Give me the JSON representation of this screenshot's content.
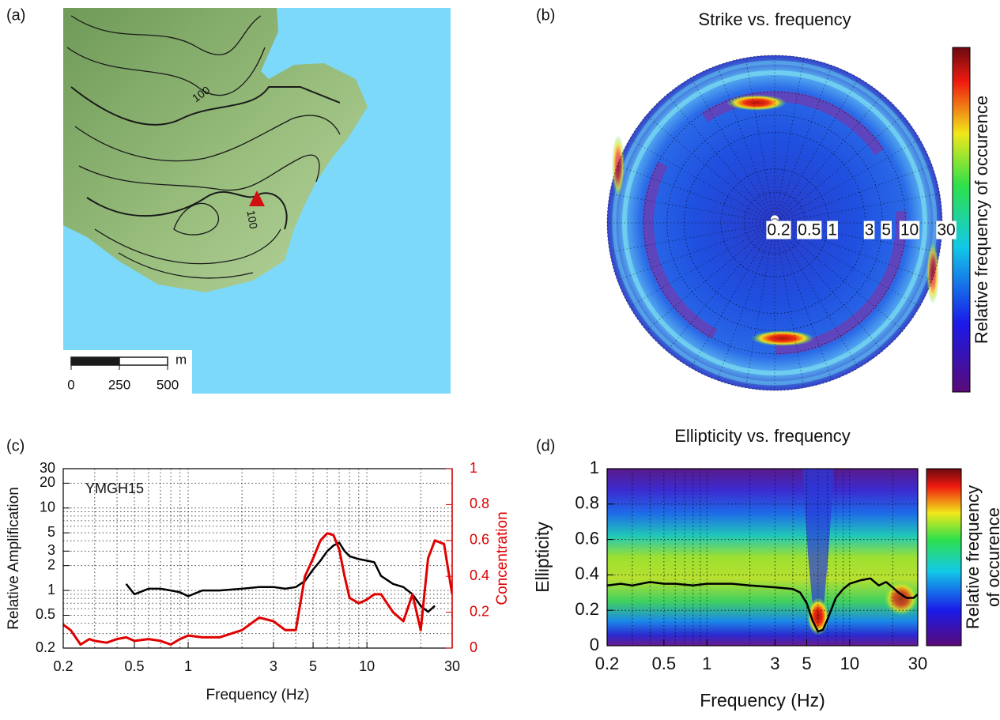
{
  "chart_data": [
    {
      "type": "map",
      "label": "(a)",
      "contour_labels": [
        "100",
        "100"
      ],
      "scale_ticks": [
        0,
        250,
        500
      ],
      "scale_unit": "m"
    },
    {
      "type": "polar_heatmap",
      "label": "(b)",
      "title": "Strike vs. frequency",
      "rlog": true,
      "rlim": [
        0.2,
        30
      ],
      "rticks": [
        0.2,
        0.5,
        1,
        3,
        5,
        10,
        30
      ],
      "colorbar_label": "Relative frequency of occurence"
    },
    {
      "type": "line",
      "label": "(c)",
      "annotation": "YMGH15",
      "x_label": "Frequency (Hz)",
      "y_label": "Relative Amplification",
      "y2_label": "Concentration",
      "xlog": true,
      "ylog": true,
      "grid": true,
      "xlim": [
        0.2,
        30
      ],
      "xticks": [
        0.2,
        0.5,
        1,
        3,
        5,
        10,
        30
      ],
      "xgrid_minor": [
        0.3,
        0.4,
        0.6,
        0.7,
        0.8,
        0.9,
        2,
        4,
        6,
        7,
        8,
        9,
        20
      ],
      "ylim": [
        0.2,
        30
      ],
      "yticks": [
        0.2,
        0.5,
        1,
        2,
        3,
        5,
        10,
        20,
        30
      ],
      "ygrid_minor": [
        0.3,
        0.4,
        0.6,
        0.7,
        0.8,
        0.9,
        4,
        6,
        7,
        8,
        9
      ],
      "y2lim": [
        0,
        1
      ],
      "y2ticks": [
        0,
        0.2,
        0.4,
        0.6,
        0.8,
        1
      ],
      "x": [
        0.2,
        0.22,
        0.25,
        0.28,
        0.3,
        0.35,
        0.4,
        0.45,
        0.5,
        0.6,
        0.7,
        0.8,
        0.9,
        1,
        1.2,
        1.5,
        2,
        2.5,
        3,
        3.5,
        4,
        4.5,
        5,
        5.5,
        6,
        6.5,
        7,
        7.5,
        8,
        9,
        10,
        11,
        12,
        14,
        16,
        18,
        20,
        22,
        24,
        27,
        30
      ],
      "series": [
        {
          "color": "#000000",
          "axis": "y",
          "values": [
            null,
            null,
            null,
            null,
            null,
            null,
            null,
            1.2,
            0.9,
            1.05,
            1.05,
            1.0,
            0.95,
            0.85,
            1.0,
            1.0,
            1.05,
            1.1,
            1.1,
            1.05,
            1.1,
            1.3,
            1.8,
            2.3,
            3,
            3.5,
            3.8,
            3,
            2.6,
            2.4,
            2.3,
            2.2,
            1.5,
            1.2,
            1.1,
            0.9,
            0.65,
            0.55,
            0.65,
            null,
            null
          ]
        },
        {
          "color": "#e00000",
          "axis": "y2",
          "values": [
            0.13,
            0.1,
            0.02,
            0.05,
            0.04,
            0.03,
            0.05,
            0.06,
            0.04,
            0.05,
            0.04,
            0.02,
            0.05,
            0.07,
            0.06,
            0.06,
            0.1,
            0.17,
            0.15,
            0.1,
            0.1,
            0.4,
            0.5,
            0.6,
            0.64,
            0.63,
            0.55,
            0.4,
            0.28,
            0.25,
            0.27,
            0.3,
            0.3,
            0.2,
            0.15,
            0.3,
            0.1,
            0.5,
            0.6,
            0.58,
            0.3
          ]
        }
      ]
    },
    {
      "type": "heatmap_line",
      "label": "(d)",
      "title": "Ellipticity vs. frequency",
      "x_label": "Frequency (Hz)",
      "y_label": "Ellipticity",
      "colorbar_label": [
        "Relative frequency",
        "of occurence"
      ],
      "xlog": true,
      "grid": true,
      "xlim": [
        0.2,
        30
      ],
      "xticks": [
        0.2,
        0.5,
        1,
        3,
        5,
        10,
        30
      ],
      "xgrid_minor": [
        0.3,
        0.4,
        0.6,
        0.7,
        0.8,
        0.9,
        2,
        4,
        6,
        7,
        8,
        9,
        20
      ],
      "ylim": [
        0,
        1
      ],
      "yticks": [
        0,
        0.2,
        0.4,
        0.6,
        0.8,
        1
      ],
      "x": [
        0.2,
        0.25,
        0.3,
        0.4,
        0.5,
        0.6,
        0.8,
        1,
        1.5,
        2,
        3,
        4,
        4.5,
        5,
        5.5,
        6,
        6.5,
        7,
        8,
        9,
        10,
        12,
        14,
        16,
        18,
        20,
        22,
        25,
        28,
        30
      ],
      "series": [
        {
          "color": "#000000",
          "values": [
            0.34,
            0.35,
            0.34,
            0.36,
            0.35,
            0.35,
            0.34,
            0.35,
            0.35,
            0.34,
            0.33,
            0.32,
            0.3,
            0.24,
            0.14,
            0.08,
            0.09,
            0.15,
            0.27,
            0.32,
            0.35,
            0.37,
            0.38,
            0.34,
            0.36,
            0.33,
            0.3,
            0.27,
            0.27,
            0.29
          ]
        }
      ]
    }
  ]
}
